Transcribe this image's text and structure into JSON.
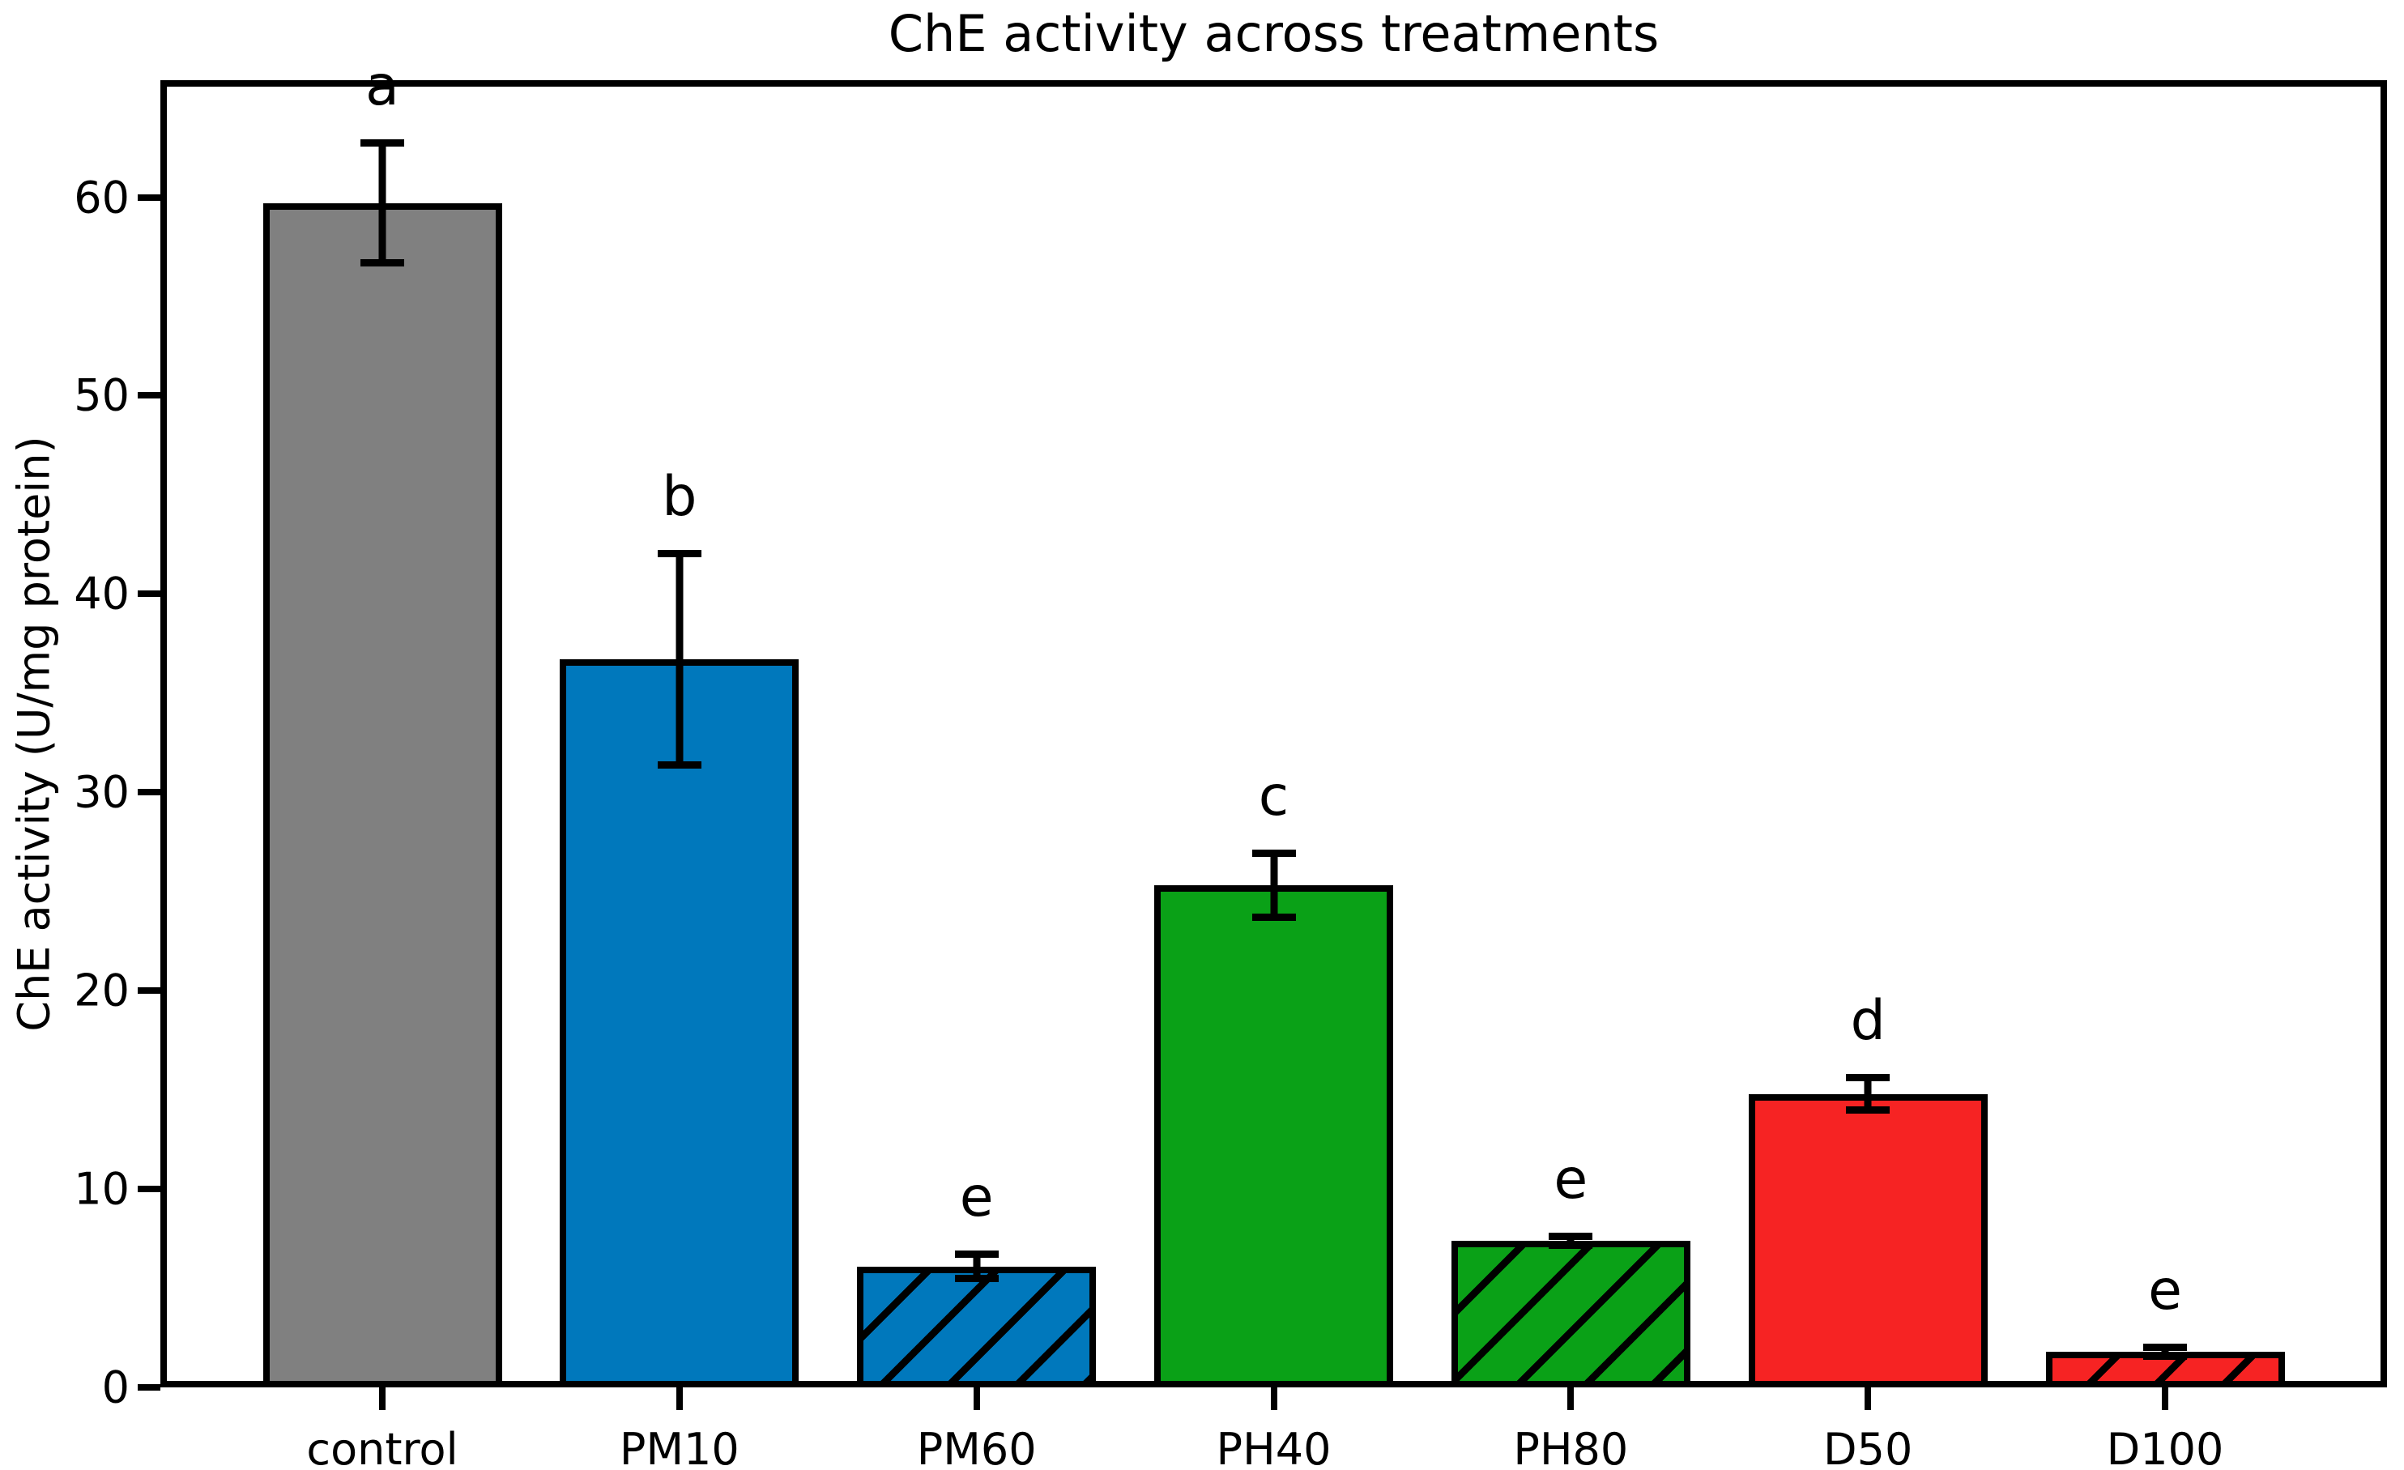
{
  "figure": {
    "background": "#ffffff"
  },
  "chart_data": {
    "type": "bar",
    "title": "ChE activity across treatments",
    "xlabel": "",
    "ylabel": "ChE activity (U/mg protein)",
    "categories": [
      "control",
      "PM10",
      "PM60",
      "PH40",
      "PH80",
      "D50",
      "D100"
    ],
    "values": [
      59.7,
      36.7,
      6.1,
      25.3,
      7.4,
      14.8,
      1.8
    ],
    "errors": [
      3.2,
      5.5,
      0.8,
      1.8,
      0.4,
      1.0,
      0.4
    ],
    "sig_letters": [
      "a",
      "b",
      "e",
      "c",
      "e",
      "d",
      "e"
    ],
    "bar_colors": [
      "#808080",
      "#0078BC",
      "#0078BC",
      "#0AA117",
      "#0AA117",
      "#F62323",
      "#F62323"
    ],
    "hatched": [
      false,
      false,
      true,
      false,
      true,
      false,
      true
    ],
    "hatch_pattern": "/",
    "edge_color": "#000000",
    "error_bar_color": "#000000",
    "yticks": [
      0,
      10,
      20,
      30,
      40,
      50,
      60
    ],
    "ylim": [
      0,
      65.9
    ],
    "grid": false,
    "legend": null
  }
}
